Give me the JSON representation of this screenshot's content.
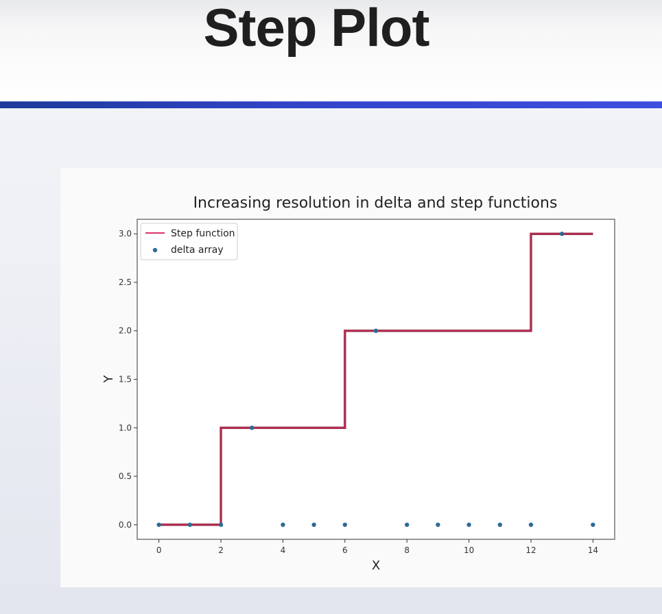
{
  "slide": {
    "title": "Step Plot"
  },
  "chart_data": {
    "type": "line",
    "title": "Increasing resolution in delta and step functions",
    "xlabel": "X",
    "ylabel": "Y",
    "xlim": [
      -0.7,
      14.7
    ],
    "ylim": [
      -0.15,
      3.15
    ],
    "xticks": [
      0,
      2,
      4,
      6,
      8,
      10,
      12,
      14
    ],
    "yticks": [
      0.0,
      0.5,
      1.0,
      1.5,
      2.0,
      2.5,
      3.0
    ],
    "grid": false,
    "legend_position": "upper-left",
    "series": [
      {
        "name": "Step function",
        "kind": "step",
        "color": "#d6336c",
        "x": [
          0,
          2,
          2,
          6,
          6,
          12,
          12,
          14
        ],
        "y": [
          0,
          0,
          1,
          1,
          2,
          2,
          3,
          3
        ]
      },
      {
        "name": "delta array",
        "kind": "scatter",
        "color": "#2b6c94",
        "x": [
          0,
          1,
          2,
          3,
          4,
          5,
          6,
          7,
          8,
          9,
          10,
          11,
          12,
          13,
          14
        ],
        "y": [
          0,
          0,
          0,
          1,
          0,
          0,
          0,
          2,
          0,
          0,
          0,
          0,
          0,
          3,
          0
        ]
      }
    ]
  }
}
